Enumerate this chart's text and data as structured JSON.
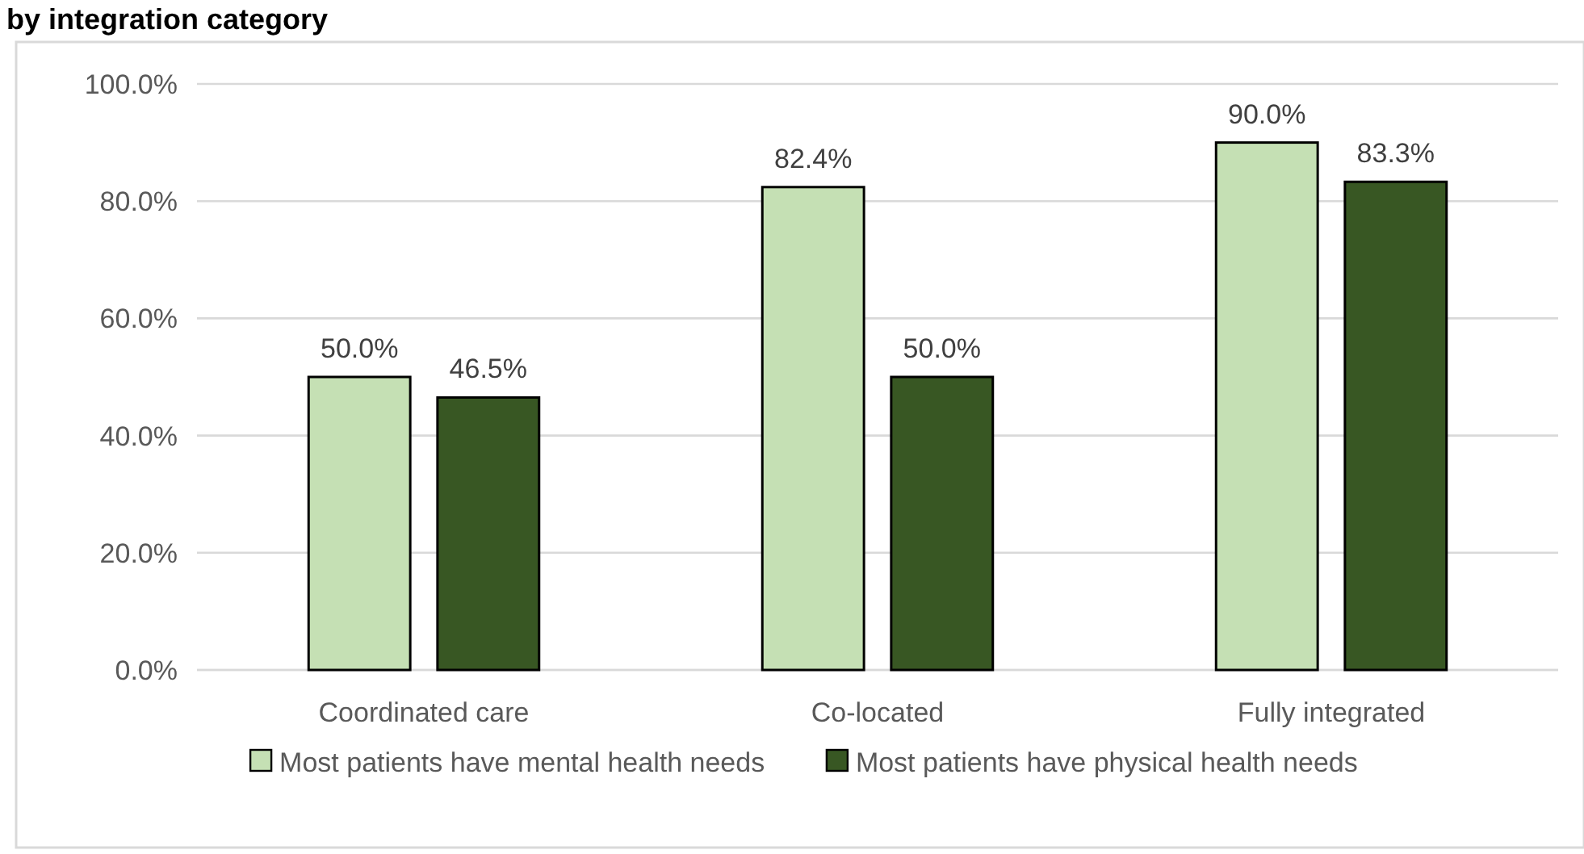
{
  "chart_data": {
    "type": "bar",
    "title": "by integration category",
    "categories": [
      "Coordinated care",
      "Co-located",
      "Fully integrated"
    ],
    "series": [
      {
        "name": "Most patients have mental health needs",
        "color": "#c5e0b4",
        "values": [
          50.0,
          82.4,
          90.0
        ],
        "value_labels": [
          "50.0%",
          "82.4%",
          "90.0%"
        ]
      },
      {
        "name": "Most patients have physical health needs",
        "color": "#385723",
        "values": [
          46.5,
          50.0,
          83.3
        ],
        "value_labels": [
          "46.5%",
          "50.0%",
          "83.3%"
        ]
      }
    ],
    "ylim": [
      0,
      100
    ],
    "yticks": [
      {
        "value": 0,
        "label": "0.0%"
      },
      {
        "value": 20,
        "label": "20.0%"
      },
      {
        "value": 40,
        "label": "40.0%"
      },
      {
        "value": 60,
        "label": "60.0%"
      },
      {
        "value": 80,
        "label": "80.0%"
      },
      {
        "value": 100,
        "label": "100.0%"
      }
    ],
    "grid": "y",
    "legend": "bottom"
  }
}
